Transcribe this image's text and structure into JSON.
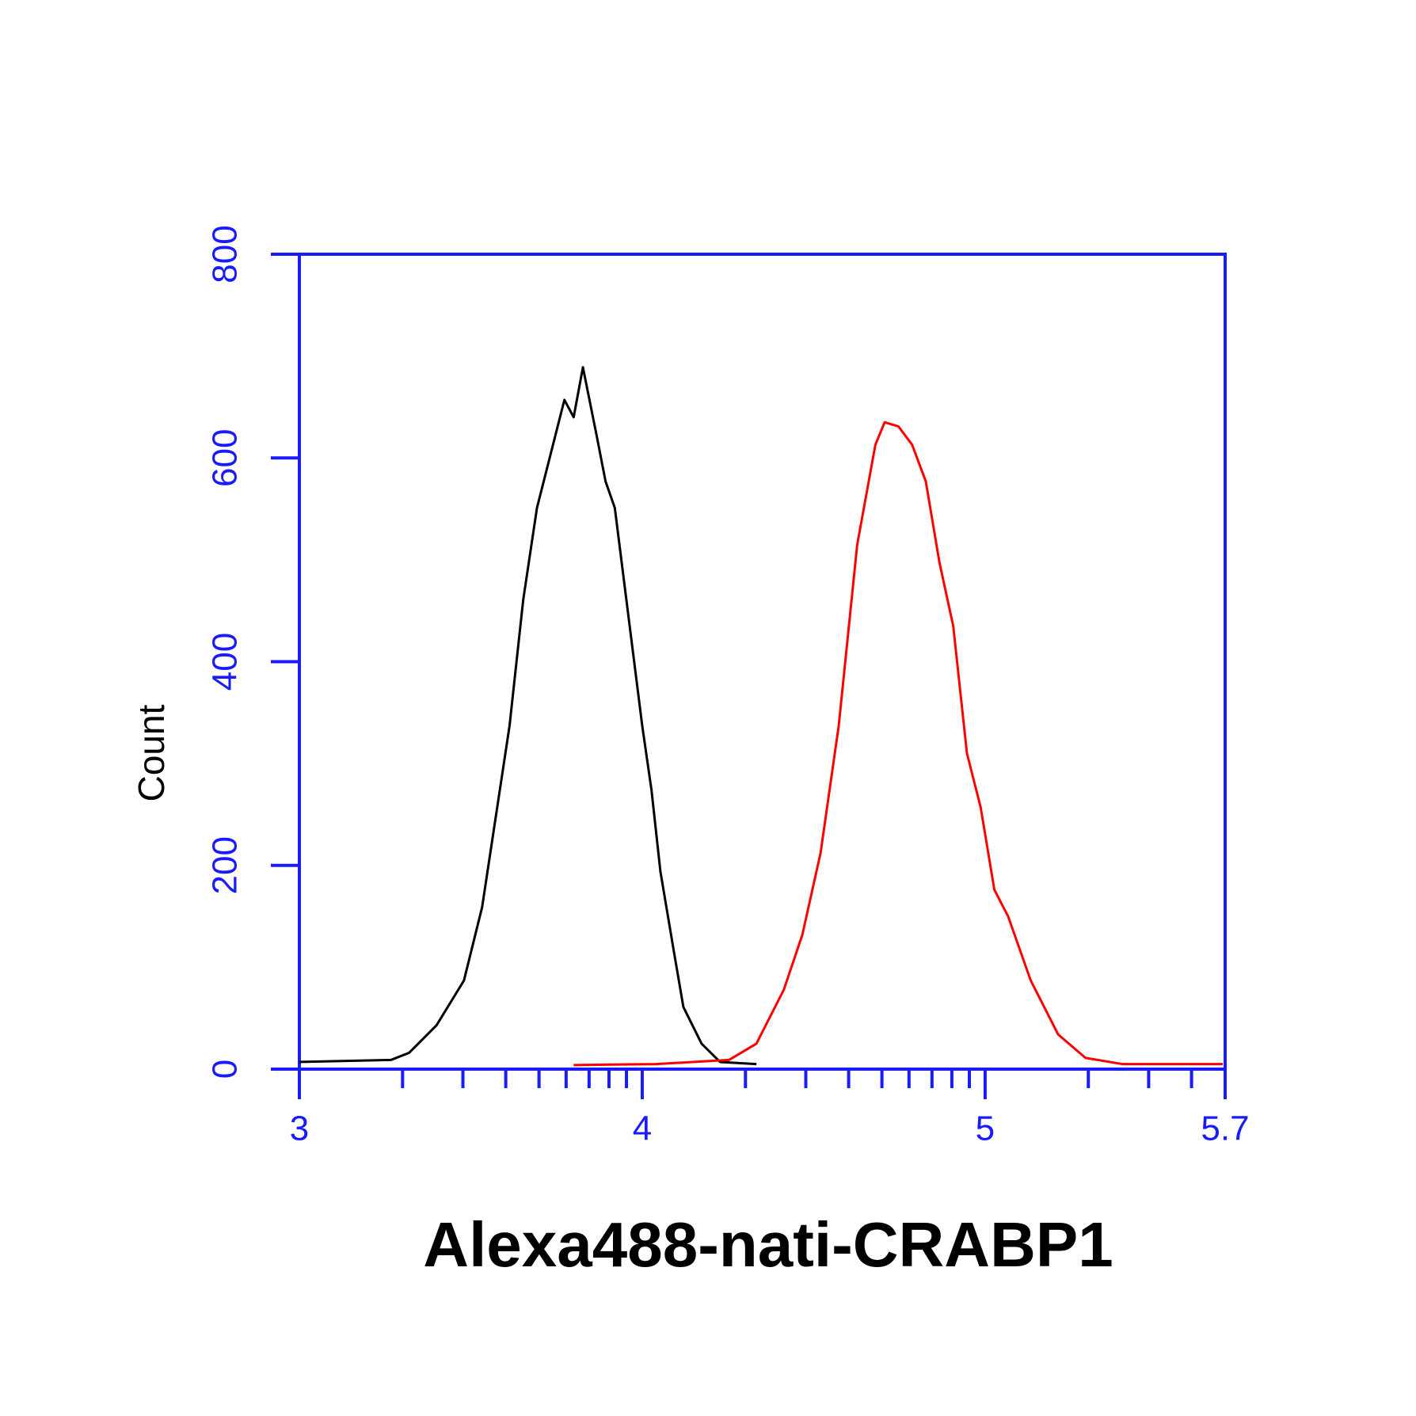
{
  "chart_data": {
    "type": "line",
    "x_label": "Alexa488-nati-CRABP1",
    "y_label": "Count",
    "xlim": [
      3,
      5.7
    ],
    "ylim": [
      0,
      800
    ],
    "xticks": [
      3,
      4,
      5,
      5.7
    ],
    "xminorticks": [
      3.301,
      3.477,
      3.602,
      3.699,
      3.778,
      3.845,
      3.903,
      3.954,
      4.301,
      4.477,
      4.602,
      4.699,
      4.778,
      4.845,
      4.903,
      4.954,
      5.301,
      5.477,
      5.602
    ],
    "yticks": [
      0,
      200,
      400,
      600,
      800
    ],
    "axis_color": "#1a1aff",
    "series": [
      {
        "color": "#000000",
        "x": [
          3.0,
          3.267,
          3.32,
          3.4,
          3.48,
          3.533,
          3.573,
          3.613,
          3.653,
          3.693,
          3.733,
          3.773,
          3.8,
          3.827,
          3.867,
          3.893,
          3.92,
          3.96,
          4.0,
          4.027,
          4.053,
          4.093,
          4.12,
          4.173,
          4.227,
          4.333
        ],
        "values": [
          7,
          9,
          16,
          43,
          87,
          159,
          248,
          337,
          461,
          551,
          604,
          657,
          640,
          689,
          622,
          577,
          551,
          444,
          337,
          274,
          194,
          114,
          61,
          25,
          7,
          5
        ]
      },
      {
        "color": "#ff0000",
        "x": [
          3.8,
          4.04,
          4.253,
          4.333,
          4.413,
          4.467,
          4.52,
          4.573,
          4.627,
          4.68,
          4.707,
          4.747,
          4.787,
          4.827,
          4.867,
          4.907,
          4.947,
          4.987,
          5.027,
          5.067,
          5.133,
          5.213,
          5.293,
          5.4,
          5.693
        ],
        "values": [
          4,
          5,
          9,
          25,
          78,
          132,
          212,
          337,
          515,
          613,
          635,
          631,
          613,
          577,
          497,
          435,
          310,
          257,
          176,
          150,
          87,
          34,
          11,
          5,
          5
        ]
      }
    ]
  }
}
